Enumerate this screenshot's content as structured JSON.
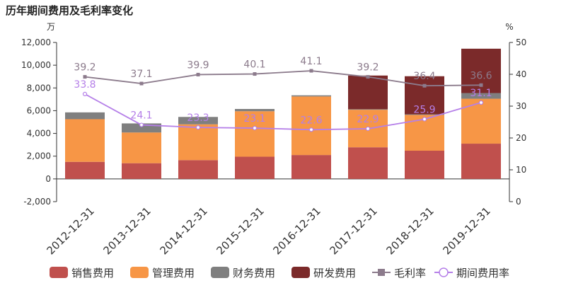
{
  "chart_data": {
    "title": "历年期间费用及毛利率变化",
    "type": "bar",
    "stacked": true,
    "categories": [
      "2012-12-31",
      "2013-12-31",
      "2014-12-31",
      "2015-12-31",
      "2016-12-31",
      "2017-12-31",
      "2018-12-31",
      "2019-12-31"
    ],
    "y_left": {
      "unit": "万",
      "ylim": [
        -2000,
        12000
      ],
      "ticks": [
        "-2,000",
        "0",
        "2,000",
        "4,000",
        "6,000",
        "8,000",
        "10,000",
        "12,000"
      ]
    },
    "y_right": {
      "unit": "%",
      "ylim": [
        0,
        50
      ],
      "ticks": [
        "0",
        "10",
        "20",
        "30",
        "40",
        "50"
      ]
    },
    "bar_series": [
      {
        "name": "销售费用",
        "color": "#c0504d",
        "values": [
          1500,
          1380,
          1650,
          1950,
          2100,
          2780,
          2480,
          3100
        ]
      },
      {
        "name": "管理费用",
        "color": "#f79646",
        "values": [
          3750,
          2700,
          3150,
          4000,
          5150,
          3300,
          3150,
          3950
        ]
      },
      {
        "name": "财务费用",
        "color": "#7f7f7f",
        "values": [
          600,
          800,
          650,
          200,
          100,
          50,
          50,
          500
        ]
      },
      {
        "name": "研发费用",
        "color": "#7b2a2a",
        "values": [
          0,
          0,
          0,
          0,
          0,
          2960,
          3350,
          3900
        ]
      }
    ],
    "line_series": [
      {
        "name": "毛利率",
        "color": "#8c7b8c",
        "values": [
          39.2,
          37.1,
          39.9,
          40.1,
          41.1,
          39.2,
          36.4,
          36.6
        ],
        "labels": [
          "39.2",
          "37.1",
          "39.9",
          "40.1",
          "41.1",
          "39.2",
          "36.4",
          "36.6"
        ]
      },
      {
        "name": "期间费用率",
        "color": "#b57fe8",
        "values": [
          33.8,
          24.1,
          23.3,
          23.1,
          22.6,
          22.9,
          25.9,
          31.1
        ],
        "labels": [
          "33.8",
          "24.1",
          "23.3",
          "23.1",
          "22.6",
          "22.9",
          "25.9",
          "31.1"
        ]
      }
    ],
    "legend_position": "bottom",
    "grid": false
  }
}
